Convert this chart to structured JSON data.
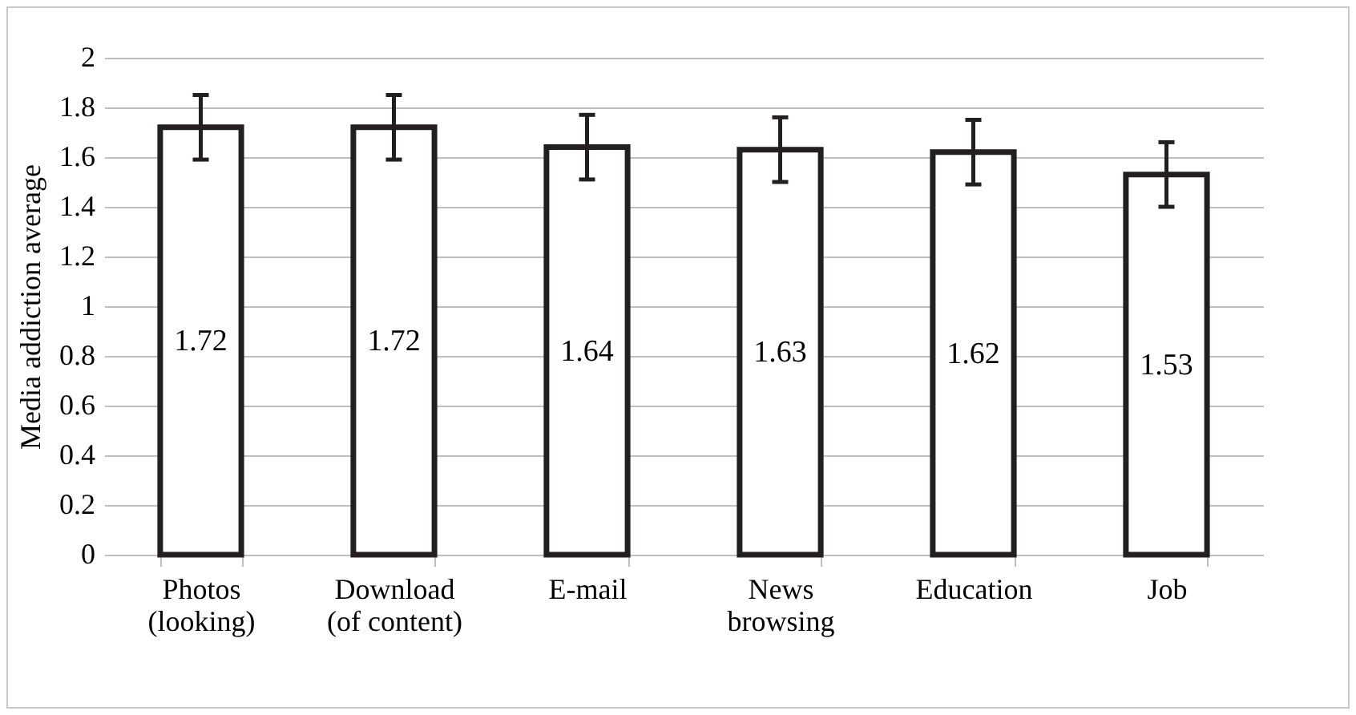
{
  "chart_data": {
    "type": "bar",
    "ylabel": "Media addiction average",
    "categories": [
      "Photos (looking)",
      "Download (of content)",
      "E-mail",
      "News browsing",
      "Education",
      "Job"
    ],
    "values": [
      1.72,
      1.72,
      1.64,
      1.63,
      1.62,
      1.53
    ],
    "errors": [
      0.13,
      0.13,
      0.13,
      0.13,
      0.13,
      0.13
    ],
    "color": "#231f20",
    "ylim": [
      0,
      2
    ],
    "yticks": [
      0,
      0.2,
      0.4,
      0.6,
      0.8,
      1,
      1.2,
      1.4,
      1.6,
      1.8,
      2
    ],
    "grid": "y",
    "data_labels": true
  }
}
